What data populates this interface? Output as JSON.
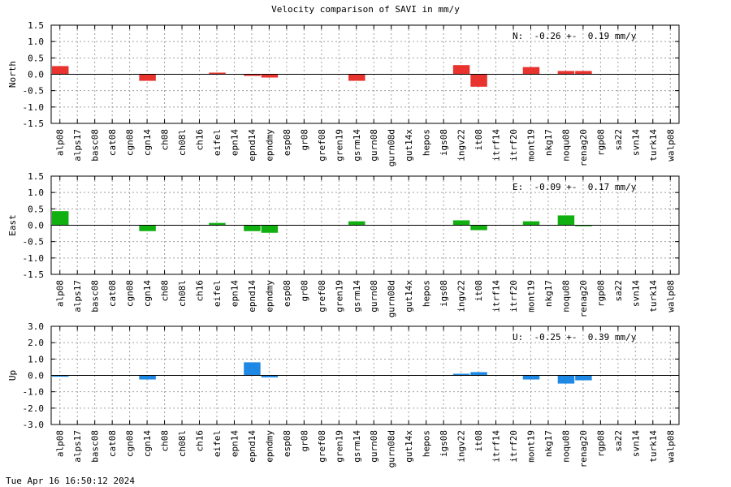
{
  "title": "Velocity comparison of SAVI in mm/y",
  "timestamp": "Tue Apr 16 16:50:12 2024",
  "chart_data": {
    "type": "bar",
    "categories": [
      "alp08",
      "alps17",
      "basc08",
      "cat08",
      "cgn08",
      "cgn14",
      "ch08",
      "ch08l",
      "ch16",
      "eifel",
      "epn14",
      "epnd14",
      "epndmy",
      "esp08",
      "gr08",
      "gref08",
      "gren19",
      "gsrm14",
      "gurn08",
      "gurn08d",
      "gut14x",
      "hepos",
      "igs08",
      "ingv22",
      "it08",
      "itrf14",
      "itrf20",
      "mont19",
      "nkg17",
      "noqu08",
      "renag20",
      "rgp08",
      "sa22",
      "svn14",
      "turk14",
      "walp08"
    ],
    "panels": [
      {
        "ylabel": "North",
        "color": "#e8332e",
        "ylim": [
          -1.5,
          1.5
        ],
        "yticks": [
          "1.5",
          "1.0",
          "0.5",
          "0.0",
          "-0.5",
          "-1.0",
          "-1.5"
        ],
        "stat": "N:  -0.26 +-  0.19 mm/y",
        "values": [
          0.25,
          0,
          0,
          0,
          0,
          -0.2,
          0,
          0,
          0,
          0.05,
          0,
          -0.05,
          -0.1,
          0,
          0,
          0,
          0,
          -0.2,
          0,
          0,
          0,
          0,
          0,
          0.28,
          -0.38,
          0,
          0,
          0.22,
          0,
          0.1,
          0.1,
          0,
          0,
          0,
          0,
          0
        ]
      },
      {
        "ylabel": "East",
        "color": "#10b010",
        "ylim": [
          -1.5,
          1.5
        ],
        "yticks": [
          "1.5",
          "1.0",
          "0.5",
          "0.0",
          "-0.5",
          "-1.0",
          "-1.5"
        ],
        "stat": "E:  -0.09 +-  0.17 mm/y",
        "values": [
          0.43,
          0,
          0,
          0,
          0,
          -0.18,
          0,
          0,
          0,
          0.07,
          0,
          -0.18,
          -0.23,
          0,
          0,
          0,
          0,
          0.12,
          0,
          0,
          0,
          0,
          0,
          0.15,
          -0.15,
          0,
          0,
          0.12,
          0,
          0.3,
          -0.03,
          0,
          0,
          0,
          0,
          0
        ]
      },
      {
        "ylabel": "Up",
        "color": "#1e88e5",
        "ylim": [
          -3.0,
          3.0
        ],
        "yticks": [
          "3.0",
          "2.0",
          "1.0",
          "0.0",
          "-1.0",
          "-2.0",
          "-3.0"
        ],
        "stat": "U:  -0.25 +-  0.39 mm/y",
        "values": [
          -0.08,
          0,
          0,
          0,
          0,
          -0.25,
          0,
          0,
          0,
          0,
          0,
          0.8,
          -0.12,
          0,
          0,
          0,
          0,
          0,
          0,
          0,
          0,
          0,
          0,
          0.1,
          0.2,
          0,
          0,
          -0.25,
          0,
          -0.5,
          -0.3,
          0,
          0,
          0,
          0,
          0
        ]
      }
    ],
    "xgrid": true,
    "ygrid": true
  }
}
